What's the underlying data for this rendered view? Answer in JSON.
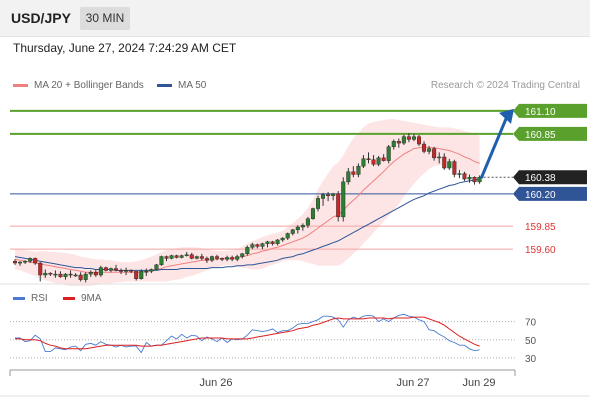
{
  "header": {
    "symbol": "USD/JPY",
    "timeframe": "30 MIN",
    "datetime": "Thursday, June 27, 2024 7:24:29 AM CET"
  },
  "legend": {
    "bb_label": "MA 20 + Bollinger Bands",
    "ma50_label": "MA 50",
    "credit": "Research © 2024 Trading Central"
  },
  "rsi_legend": {
    "rsi_label": "RSI",
    "ma_label": "9MA"
  },
  "colors": {
    "bb": "#f08080",
    "bb_band": "#fde0e0",
    "ma50": "#2f5597",
    "up": "#2e7d32",
    "down": "#c62828",
    "target": "#5aa02c",
    "arrow": "#1f5fae",
    "support": "#2f5597",
    "resistance": "#f4a3a3",
    "last": "#222222",
    "rsi": "#4a7bd0",
    "rsi_ma": "#dd1f1f"
  },
  "chart_data": {
    "type": "candlestick",
    "instrument": "USD/JPY",
    "timeframe": "30 MIN",
    "x_labels": [
      "Jun 26",
      "Jun 27",
      "Jun 29"
    ],
    "ylim": [
      159.32,
      161.25
    ],
    "ohlc": [
      [
        159.47,
        159.49,
        159.43,
        159.45
      ],
      [
        159.45,
        159.47,
        159.42,
        159.46
      ],
      [
        159.46,
        159.48,
        159.44,
        159.47
      ],
      [
        159.47,
        159.51,
        159.45,
        159.5
      ],
      [
        159.5,
        159.51,
        159.43,
        159.45
      ],
      [
        159.45,
        159.46,
        159.25,
        159.32
      ],
      [
        159.32,
        159.38,
        159.29,
        159.34
      ],
      [
        159.34,
        159.35,
        159.31,
        159.33
      ],
      [
        159.33,
        159.37,
        159.29,
        159.33
      ],
      [
        159.33,
        159.36,
        159.29,
        159.3
      ],
      [
        159.3,
        159.34,
        159.27,
        159.33
      ],
      [
        159.33,
        159.37,
        159.29,
        159.32
      ],
      [
        159.32,
        159.34,
        159.3,
        159.32
      ],
      [
        159.32,
        159.35,
        159.25,
        159.27
      ],
      [
        159.27,
        159.35,
        159.24,
        159.33
      ],
      [
        159.33,
        159.37,
        159.3,
        159.35
      ],
      [
        159.35,
        159.38,
        159.3,
        159.32
      ],
      [
        159.32,
        159.42,
        159.3,
        159.4
      ],
      [
        159.4,
        159.41,
        159.36,
        159.37
      ],
      [
        159.37,
        159.4,
        159.35,
        159.39
      ],
      [
        159.39,
        159.43,
        159.36,
        159.37
      ],
      [
        159.37,
        159.39,
        159.33,
        159.36
      ],
      [
        159.36,
        159.4,
        159.32,
        159.37
      ],
      [
        159.37,
        159.38,
        159.34,
        159.36
      ],
      [
        159.36,
        159.36,
        159.26,
        159.28
      ],
      [
        159.28,
        159.38,
        159.27,
        159.36
      ],
      [
        159.36,
        159.39,
        159.31,
        159.36
      ],
      [
        159.36,
        159.39,
        159.34,
        159.38
      ],
      [
        159.38,
        159.44,
        159.37,
        159.43
      ],
      [
        159.43,
        159.53,
        159.42,
        159.52
      ],
      [
        159.52,
        159.53,
        159.47,
        159.5
      ],
      [
        159.5,
        159.54,
        159.49,
        159.53
      ],
      [
        159.53,
        159.54,
        159.5,
        159.51
      ],
      [
        159.51,
        159.54,
        159.5,
        159.53
      ],
      [
        159.53,
        159.57,
        159.52,
        159.54
      ],
      [
        159.54,
        159.56,
        159.49,
        159.5
      ],
      [
        159.5,
        159.53,
        159.49,
        159.52
      ],
      [
        159.52,
        159.55,
        159.48,
        159.5
      ],
      [
        159.5,
        159.52,
        159.45,
        159.48
      ],
      [
        159.48,
        159.53,
        159.46,
        159.52
      ],
      [
        159.52,
        159.54,
        159.48,
        159.5
      ],
      [
        159.5,
        159.51,
        159.47,
        159.49
      ],
      [
        159.49,
        159.53,
        159.47,
        159.51
      ],
      [
        159.51,
        159.53,
        159.47,
        159.49
      ],
      [
        159.49,
        159.54,
        159.47,
        159.52
      ],
      [
        159.52,
        159.56,
        159.5,
        159.55
      ],
      [
        159.55,
        159.64,
        159.53,
        159.62
      ],
      [
        159.62,
        159.67,
        159.6,
        159.65
      ],
      [
        159.65,
        159.66,
        159.61,
        159.63
      ],
      [
        159.63,
        159.67,
        159.6,
        159.66
      ],
      [
        159.66,
        159.69,
        159.62,
        159.68
      ],
      [
        159.68,
        159.69,
        159.64,
        159.66
      ],
      [
        159.66,
        159.71,
        159.64,
        159.7
      ],
      [
        159.7,
        159.73,
        159.68,
        159.72
      ],
      [
        159.72,
        159.78,
        159.7,
        159.77
      ],
      [
        159.77,
        159.82,
        159.75,
        159.81
      ],
      [
        159.81,
        159.86,
        159.77,
        159.84
      ],
      [
        159.84,
        159.88,
        159.8,
        159.86
      ],
      [
        159.86,
        159.95,
        159.83,
        159.93
      ],
      [
        159.93,
        160.05,
        159.92,
        160.04
      ],
      [
        160.04,
        160.18,
        160.01,
        160.15
      ],
      [
        160.15,
        160.21,
        160.07,
        160.19
      ],
      [
        160.19,
        160.22,
        160.12,
        160.18
      ],
      [
        160.18,
        160.21,
        160.13,
        160.2
      ],
      [
        160.2,
        160.23,
        159.9,
        159.95
      ],
      [
        159.95,
        160.38,
        159.9,
        160.33
      ],
      [
        160.33,
        160.48,
        160.3,
        160.44
      ],
      [
        160.44,
        160.5,
        160.38,
        160.41
      ],
      [
        160.41,
        160.53,
        160.38,
        160.5
      ],
      [
        160.5,
        160.62,
        160.48,
        160.58
      ],
      [
        160.58,
        160.65,
        160.53,
        160.57
      ],
      [
        160.57,
        160.62,
        160.5,
        160.52
      ],
      [
        160.52,
        160.61,
        160.5,
        160.59
      ],
      [
        160.59,
        160.63,
        160.55,
        160.56
      ],
      [
        160.56,
        160.73,
        160.53,
        160.71
      ],
      [
        160.71,
        160.79,
        160.68,
        160.77
      ],
      [
        160.77,
        160.8,
        160.7,
        160.75
      ],
      [
        160.75,
        160.84,
        160.73,
        160.82
      ],
      [
        160.82,
        160.86,
        160.76,
        160.79
      ],
      [
        160.79,
        160.85,
        160.77,
        160.82
      ],
      [
        160.82,
        160.84,
        160.72,
        160.74
      ],
      [
        160.74,
        160.77,
        160.64,
        160.66
      ],
      [
        160.66,
        160.72,
        160.63,
        160.69
      ],
      [
        160.69,
        160.71,
        160.56,
        160.59
      ],
      [
        160.59,
        160.65,
        160.53,
        160.6
      ],
      [
        160.6,
        160.64,
        160.46,
        160.48
      ],
      [
        160.48,
        160.58,
        160.46,
        160.55
      ],
      [
        160.55,
        160.57,
        160.38,
        160.41
      ],
      [
        160.41,
        160.46,
        160.37,
        160.42
      ],
      [
        160.42,
        160.44,
        160.34,
        160.36
      ],
      [
        160.36,
        160.41,
        160.32,
        160.38
      ],
      [
        160.38,
        160.39,
        160.3,
        160.33
      ],
      [
        160.33,
        160.4,
        160.31,
        160.38
      ]
    ],
    "bollinger": {
      "ma20": [
        159.49,
        159.48,
        159.47,
        159.46,
        159.45,
        159.44,
        159.43,
        159.42,
        159.41,
        159.4,
        159.39,
        159.38,
        159.37,
        159.36,
        159.35,
        159.35,
        159.35,
        159.35,
        159.35,
        159.35,
        159.35,
        159.35,
        159.35,
        159.35,
        159.35,
        159.35,
        159.36,
        159.37,
        159.38,
        159.39,
        159.41,
        159.42,
        159.43,
        159.44,
        159.45,
        159.46,
        159.47,
        159.48,
        159.48,
        159.49,
        159.49,
        159.5,
        159.5,
        159.5,
        159.51,
        159.52,
        159.53,
        159.55,
        159.56,
        159.58,
        159.59,
        159.61,
        159.62,
        159.64,
        159.66,
        159.68,
        159.7,
        159.72,
        159.75,
        159.79,
        159.83,
        159.87,
        159.91,
        159.95,
        159.97,
        160.02,
        160.08,
        160.13,
        160.18,
        160.24,
        160.29,
        160.34,
        160.39,
        160.44,
        160.5,
        160.55,
        160.59,
        160.63,
        160.66,
        160.69,
        160.7,
        160.71,
        160.7,
        160.7,
        160.69,
        160.68,
        160.67,
        160.65,
        160.63,
        160.6,
        160.58,
        160.55,
        160.53
      ],
      "upper": [
        159.6,
        159.6,
        159.59,
        159.58,
        159.57,
        159.58,
        159.58,
        159.57,
        159.57,
        159.56,
        159.56,
        159.55,
        159.54,
        159.52,
        159.51,
        159.5,
        159.49,
        159.49,
        159.48,
        159.48,
        159.47,
        159.46,
        159.46,
        159.46,
        159.47,
        159.48,
        159.5,
        159.52,
        159.54,
        159.57,
        159.59,
        159.6,
        159.61,
        159.62,
        159.62,
        159.62,
        159.62,
        159.61,
        159.6,
        159.59,
        159.58,
        159.58,
        159.58,
        159.59,
        159.6,
        159.63,
        159.66,
        159.69,
        159.71,
        159.73,
        159.75,
        159.77,
        159.78,
        159.8,
        159.84,
        159.88,
        159.93,
        159.98,
        160.05,
        160.14,
        160.25,
        160.34,
        160.42,
        160.5,
        160.54,
        160.62,
        160.72,
        160.8,
        160.86,
        160.92,
        160.96,
        160.98,
        160.99,
        161,
        161.01,
        161.01,
        161,
        160.99,
        160.98,
        160.97,
        160.96,
        160.95,
        160.94,
        160.93,
        160.92,
        160.92,
        160.92,
        160.91,
        160.9,
        160.88,
        160.87,
        160.85,
        160.83
      ],
      "lower": [
        159.38,
        159.37,
        159.35,
        159.33,
        159.31,
        159.28,
        159.26,
        159.25,
        159.23,
        159.22,
        159.21,
        159.2,
        159.2,
        159.2,
        159.2,
        159.2,
        159.21,
        159.22,
        159.22,
        159.23,
        159.24,
        159.24,
        159.25,
        159.25,
        159.25,
        159.25,
        159.25,
        159.25,
        159.25,
        159.25,
        159.25,
        159.26,
        159.27,
        159.28,
        159.3,
        159.31,
        159.33,
        159.35,
        159.37,
        159.39,
        159.4,
        159.42,
        159.43,
        159.42,
        159.41,
        159.4,
        159.39,
        159.38,
        159.38,
        159.39,
        159.41,
        159.43,
        159.45,
        159.47,
        159.48,
        159.48,
        159.48,
        159.47,
        159.45,
        159.44,
        159.42,
        159.42,
        159.42,
        159.42,
        159.42,
        159.45,
        159.5,
        159.55,
        159.6,
        159.66,
        159.72,
        159.78,
        159.84,
        159.9,
        159.96,
        160.02,
        160.09,
        160.17,
        160.24,
        160.31,
        160.37,
        160.42,
        160.47,
        160.5,
        160.51,
        160.51,
        160.5,
        160.48,
        160.45,
        160.42,
        160.38,
        160.35,
        160.3
      ]
    },
    "ma50": [
      159.52,
      159.51,
      159.5,
      159.49,
      159.48,
      159.47,
      159.46,
      159.45,
      159.44,
      159.43,
      159.42,
      159.41,
      159.4,
      159.4,
      159.39,
      159.39,
      159.38,
      159.38,
      159.38,
      159.38,
      159.37,
      159.37,
      159.37,
      159.37,
      159.37,
      159.37,
      159.37,
      159.37,
      159.37,
      159.38,
      159.38,
      159.38,
      159.38,
      159.39,
      159.39,
      159.39,
      159.39,
      159.39,
      159.39,
      159.4,
      159.4,
      159.4,
      159.41,
      159.41,
      159.42,
      159.42,
      159.43,
      159.43,
      159.44,
      159.45,
      159.46,
      159.47,
      159.48,
      159.5,
      159.51,
      159.52,
      159.54,
      159.55,
      159.57,
      159.59,
      159.61,
      159.63,
      159.65,
      159.67,
      159.69,
      159.72,
      159.75,
      159.78,
      159.81,
      159.84,
      159.87,
      159.9,
      159.93,
      159.96,
      159.99,
      160.02,
      160.05,
      160.08,
      160.11,
      160.14,
      160.16,
      160.18,
      160.21,
      160.23,
      160.25,
      160.27,
      160.29,
      160.3,
      160.32,
      160.33,
      160.34,
      160.35,
      160.36
    ],
    "levels": [
      {
        "value": 161.1,
        "label": "161.10",
        "kind": "target"
      },
      {
        "value": 160.85,
        "label": "160.85",
        "kind": "target"
      },
      {
        "value": 160.38,
        "label": "160.38",
        "kind": "last"
      },
      {
        "value": 160.2,
        "label": "160.20",
        "kind": "support"
      },
      {
        "value": 159.85,
        "label": "159.85",
        "kind": "resistance"
      },
      {
        "value": 159.6,
        "label": "159.60",
        "kind": "resistance"
      }
    ],
    "projection": {
      "from": 160.38,
      "to": 161.1
    },
    "rsi": {
      "ylim": [
        20,
        85
      ],
      "ticks": [
        70,
        50,
        30
      ],
      "values": [
        52,
        52,
        48,
        49,
        55,
        51,
        37,
        37,
        41,
        40,
        39,
        42,
        43,
        38,
        45,
        46,
        44,
        48,
        45,
        44,
        42,
        44,
        42,
        43,
        43,
        36,
        47,
        43,
        44,
        44,
        49,
        54,
        51,
        56,
        52,
        55,
        54,
        49,
        53,
        51,
        48,
        52,
        47,
        51,
        50,
        51,
        55,
        61,
        60,
        59,
        60,
        62,
        58,
        60,
        60,
        63,
        67,
        68,
        68,
        70,
        72,
        76,
        76,
        75,
        72,
        64,
        72,
        75,
        73,
        76,
        77,
        76,
        70,
        73,
        70,
        74,
        77,
        78,
        76,
        75,
        72,
        70,
        61,
        60,
        56,
        53,
        49,
        47,
        44,
        44,
        40,
        38,
        39
      ],
      "ma": [
        51,
        51,
        50,
        50,
        50,
        49,
        46,
        44,
        43,
        41,
        40,
        40,
        40,
        40,
        40,
        41,
        42,
        43,
        44,
        44,
        44,
        44,
        44,
        44,
        44,
        43,
        43,
        43,
        44,
        44,
        45,
        46,
        47,
        48,
        49,
        50,
        51,
        52,
        52,
        52,
        52,
        52,
        51,
        51,
        51,
        51,
        51,
        52,
        53,
        54,
        55,
        56,
        57,
        58,
        59,
        60,
        62,
        63,
        64,
        66,
        67,
        69,
        71,
        73,
        74,
        73,
        73,
        73,
        73,
        73,
        74,
        74,
        74,
        74,
        73,
        74,
        74,
        74,
        74,
        75,
        75,
        75,
        73,
        71,
        69,
        66,
        62,
        58,
        54,
        51,
        48,
        45,
        43
      ]
    }
  }
}
